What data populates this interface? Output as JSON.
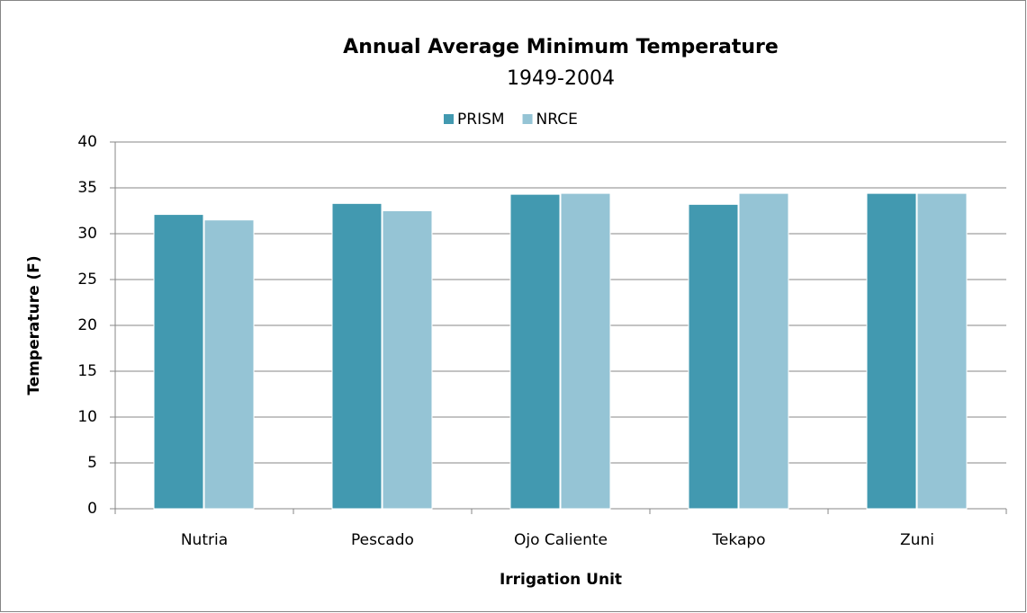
{
  "chart_data": {
    "type": "bar",
    "title": "Annual Average Minimum Temperature",
    "subtitle": "1949-2004",
    "x_label": "Irrigation Unit",
    "y_label": "Temperature (F)",
    "categories": [
      "Nutria",
      "Pescado",
      "Ojo Caliente",
      "Tekapo",
      "Zuni"
    ],
    "series": [
      {
        "name": "PRISM",
        "color": "#4299b0",
        "values": [
          32.1,
          33.3,
          34.3,
          33.2,
          34.4
        ]
      },
      {
        "name": "NRCE",
        "color": "#95c4d5",
        "values": [
          31.5,
          32.5,
          34.4,
          34.4,
          34.4
        ]
      }
    ],
    "ylim": [
      0,
      40
    ],
    "yticks": [
      0,
      5,
      10,
      15,
      20,
      25,
      30,
      35,
      40
    ],
    "grid": true,
    "legend": "top"
  }
}
